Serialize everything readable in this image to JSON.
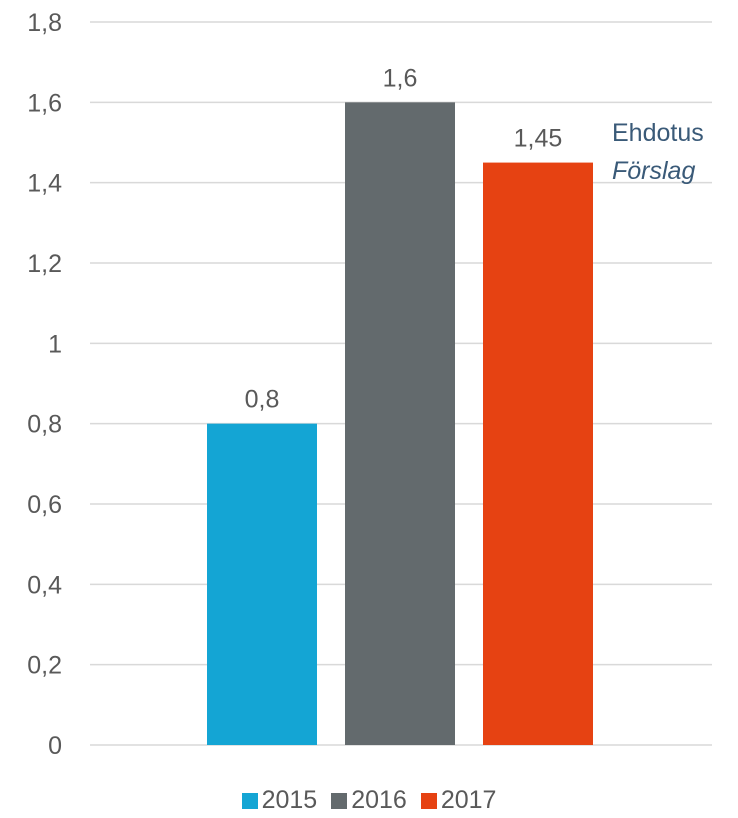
{
  "chart_data": {
    "type": "bar",
    "categories": [
      "2015",
      "2016",
      "2017"
    ],
    "values": [
      0.8,
      1.6,
      1.45
    ],
    "value_labels": [
      "0,8",
      "1,6",
      "1,45"
    ],
    "colors": [
      "#14a5d4",
      "#636a6d",
      "#e64212"
    ],
    "ylim": [
      0,
      1.8
    ],
    "y_ticks": [
      0,
      0.2,
      0.4,
      0.6,
      0.8,
      1,
      1.2,
      1.4,
      1.6,
      1.8
    ],
    "y_tick_labels": [
      "0",
      "0,2",
      "0,4",
      "0,6",
      "0,8",
      "1",
      "1,2",
      "1,4",
      "1,6",
      "1,8"
    ],
    "grid": true,
    "legend_position": "bottom",
    "title": "",
    "xlabel": "",
    "ylabel": "",
    "annotation": {
      "line1": "Ehdotus",
      "line2": "Förslag",
      "color": "#3a5a78"
    }
  },
  "legend": [
    {
      "label": "2015",
      "color": "#14a5d4"
    },
    {
      "label": "2016",
      "color": "#636a6d"
    },
    {
      "label": "2017",
      "color": "#e64212"
    }
  ]
}
